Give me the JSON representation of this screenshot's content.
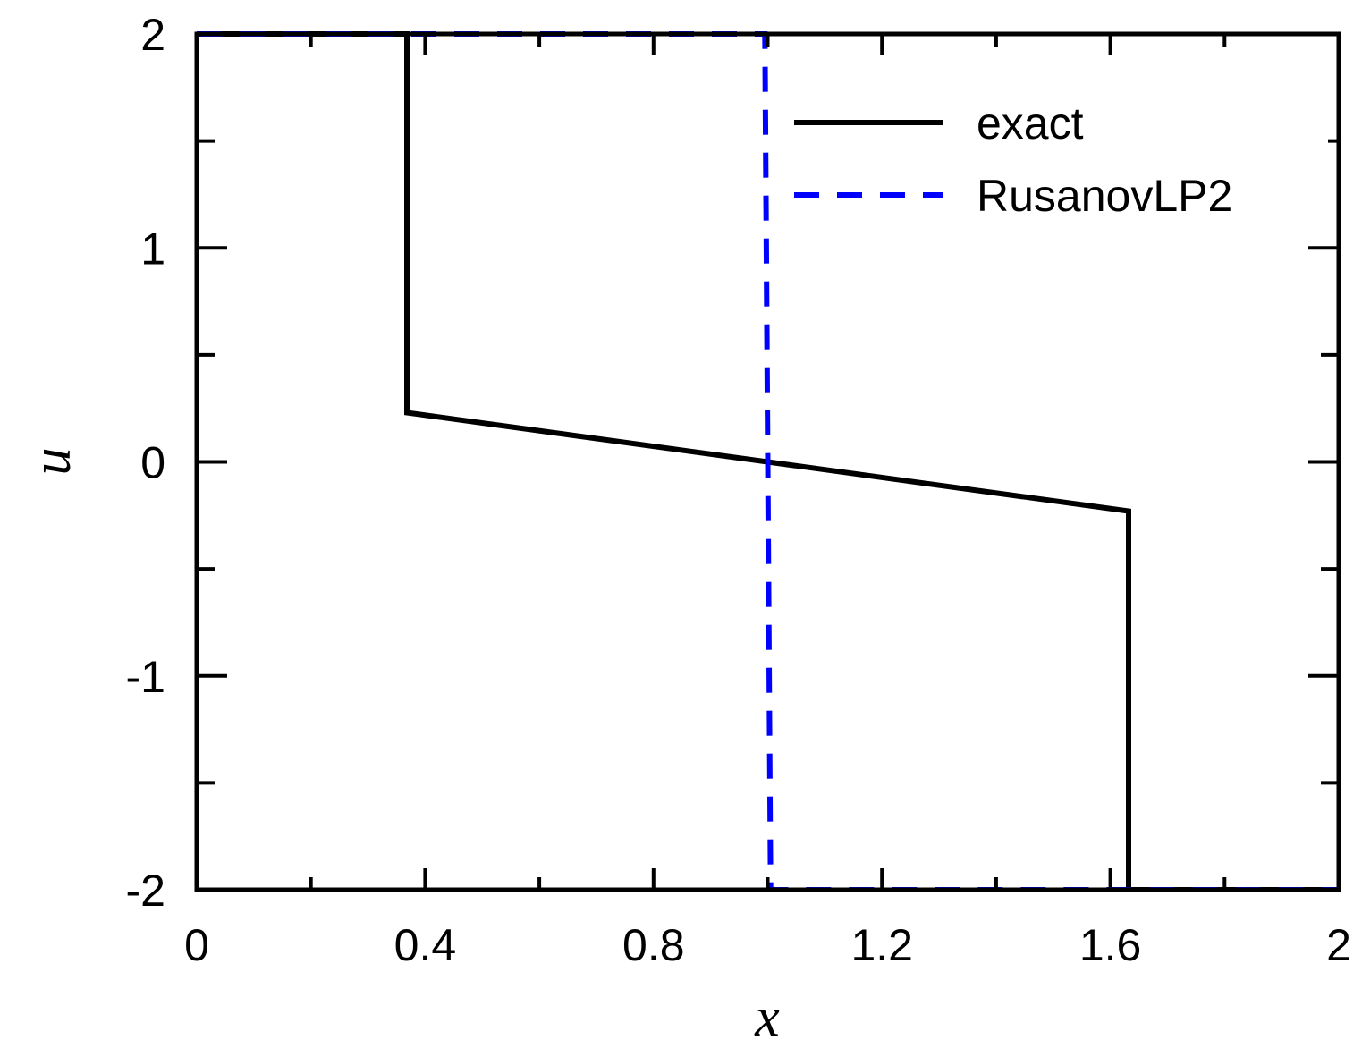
{
  "chart_data": {
    "type": "line",
    "xlabel": "x",
    "ylabel": "u",
    "xlim": [
      0,
      2
    ],
    "ylim": [
      -2,
      2
    ],
    "x_ticks": [
      0,
      0.4,
      0.8,
      1.2,
      1.6,
      2
    ],
    "x_tick_labels": [
      "0",
      "0.4",
      "0.8",
      "1.2",
      "1.6",
      "2"
    ],
    "x_minor_ticks": [
      0.2,
      0.6,
      1.0,
      1.4,
      1.8
    ],
    "y_ticks": [
      -2,
      -1,
      0,
      1,
      2
    ],
    "y_tick_labels": [
      "-2",
      "-1",
      "0",
      "1",
      "2"
    ],
    "y_minor_ticks": [
      -1.5,
      -0.5,
      0.5,
      1.5
    ],
    "grid": false,
    "legend_position": "top-right",
    "series": [
      {
        "name": "exact",
        "color": "#000000",
        "dash": "solid",
        "x": [
          0,
          0.368,
          0.368,
          1.632,
          1.632,
          2
        ],
        "y": [
          2,
          2,
          0.23,
          -0.23,
          -2,
          -2
        ]
      },
      {
        "name": "RusanovLP2",
        "color": "#0000ff",
        "dash": "dashed",
        "x": [
          0,
          0.995,
          1.0,
          1.005,
          2
        ],
        "y": [
          2,
          2,
          0,
          -2,
          -2
        ]
      }
    ]
  }
}
